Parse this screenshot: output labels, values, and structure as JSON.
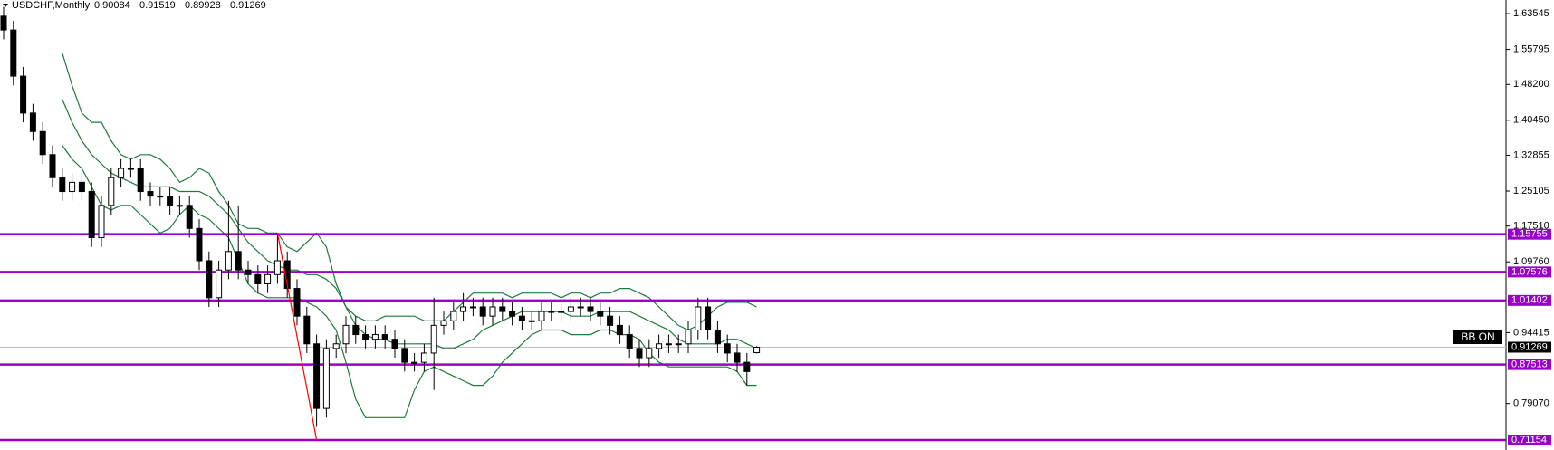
{
  "chart_data": {
    "type": "candlestick",
    "symbol": "USDCHF,Monthly",
    "ohlc": [
      0.90084,
      0.91519,
      0.89928,
      0.91269
    ],
    "indicator_label": "BB ON",
    "ylim": [
      0.69,
      1.665
    ],
    "yticks": [
      1.63545,
      1.55795,
      {
        "value": 1.482,
        "label": "1.48200"
      },
      {
        "value": 1.4045,
        "label": "1.40450"
      },
      1.32855,
      1.25105,
      {
        "value": 1.1751,
        "label": "1.17510"
      },
      {
        "value": 1.0976,
        "label": "1.09760"
      },
      0.94415,
      {
        "value": 0.7907,
        "label": "0.79070"
      }
    ],
    "open": [
      1.63,
      1.6,
      1.5,
      1.42,
      1.38,
      1.33,
      1.28,
      1.25,
      1.27,
      1.25,
      1.15,
      1.22,
      1.28,
      1.3,
      1.3,
      1.25,
      1.24,
      1.24,
      1.22,
      1.22,
      1.17,
      1.1,
      1.02,
      1.08,
      1.12,
      1.08,
      1.07,
      1.05,
      1.07,
      1.1,
      1.04,
      0.98,
      0.92,
      0.78,
      0.91,
      0.92,
      0.96,
      0.94,
      0.93,
      0.94,
      0.93,
      0.91,
      0.88,
      0.88,
      0.9,
      0.96,
      0.97,
      0.99,
      1.0,
      1.0,
      0.98,
      1.0,
      0.99,
      0.98,
      0.97,
      0.97,
      0.99,
      0.99,
      0.99,
      1.0,
      1.0,
      0.99,
      0.98,
      0.96,
      0.94,
      0.91,
      0.89,
      0.91,
      0.92,
      0.92,
      0.92,
      0.95,
      1.0,
      0.95,
      0.92,
      0.9,
      0.88,
      0.90084
    ],
    "high": [
      1.65,
      1.62,
      1.52,
      1.44,
      1.4,
      1.35,
      1.3,
      1.29,
      1.29,
      1.27,
      1.24,
      1.3,
      1.32,
      1.32,
      1.32,
      1.27,
      1.26,
      1.26,
      1.24,
      1.24,
      1.19,
      1.12,
      1.1,
      1.23,
      1.22,
      1.1,
      1.09,
      1.09,
      1.16,
      1.12,
      1.06,
      1.0,
      0.94,
      0.93,
      0.94,
      0.98,
      0.98,
      0.96,
      0.96,
      0.96,
      0.95,
      0.93,
      0.9,
      0.92,
      1.02,
      0.99,
      1.01,
      1.03,
      1.02,
      1.02,
      1.02,
      1.02,
      1.01,
      1.0,
      0.99,
      1.01,
      1.01,
      1.01,
      1.02,
      1.02,
      1.02,
      1.01,
      1.0,
      0.98,
      0.96,
      0.93,
      0.93,
      0.94,
      0.94,
      0.94,
      0.97,
      1.02,
      1.02,
      0.97,
      0.94,
      0.92,
      0.9,
      0.91519
    ],
    "low": [
      1.58,
      1.48,
      1.4,
      1.36,
      1.31,
      1.26,
      1.23,
      1.23,
      1.23,
      1.13,
      1.13,
      1.2,
      1.26,
      1.28,
      1.23,
      1.22,
      1.22,
      1.2,
      1.2,
      1.15,
      1.08,
      1.0,
      1.0,
      1.06,
      1.06,
      1.05,
      1.03,
      1.03,
      1.05,
      1.02,
      0.96,
      0.9,
      0.74,
      0.76,
      0.89,
      0.9,
      0.92,
      0.91,
      0.91,
      0.91,
      0.89,
      0.86,
      0.86,
      0.86,
      0.82,
      0.94,
      0.95,
      0.97,
      0.98,
      0.96,
      0.96,
      0.97,
      0.96,
      0.95,
      0.95,
      0.95,
      0.97,
      0.97,
      0.97,
      0.98,
      0.97,
      0.96,
      0.94,
      0.92,
      0.89,
      0.87,
      0.87,
      0.89,
      0.9,
      0.9,
      0.9,
      0.93,
      0.93,
      0.9,
      0.88,
      0.86,
      0.83,
      0.89928
    ],
    "close": [
      1.6,
      1.5,
      1.42,
      1.38,
      1.33,
      1.28,
      1.25,
      1.27,
      1.25,
      1.15,
      1.22,
      1.28,
      1.3,
      1.3,
      1.25,
      1.24,
      1.24,
      1.22,
      1.22,
      1.17,
      1.1,
      1.02,
      1.08,
      1.12,
      1.08,
      1.07,
      1.05,
      1.07,
      1.1,
      1.04,
      0.98,
      0.92,
      0.78,
      0.91,
      0.92,
      0.96,
      0.94,
      0.93,
      0.94,
      0.93,
      0.91,
      0.88,
      0.88,
      0.9,
      0.96,
      0.97,
      0.99,
      1.0,
      1.0,
      0.98,
      1.0,
      0.99,
      0.98,
      0.97,
      0.97,
      0.99,
      0.99,
      0.99,
      1.0,
      1.0,
      0.99,
      0.98,
      0.96,
      0.94,
      0.91,
      0.89,
      0.91,
      0.92,
      0.92,
      0.92,
      0.95,
      1.0,
      0.95,
      0.92,
      0.9,
      0.88,
      0.86,
      0.91269
    ],
    "bands": {
      "color": "#1e7a3c",
      "series": [
        {
          "values": [
            null,
            null,
            null,
            null,
            null,
            null,
            1.55,
            1.48,
            1.42,
            1.4,
            1.4,
            1.36,
            1.33,
            1.32,
            1.33,
            1.33,
            1.32,
            1.3,
            1.27,
            1.28,
            1.3,
            1.29,
            1.25,
            1.22,
            1.18,
            1.17,
            1.17,
            1.16,
            1.16,
            1.13,
            1.12,
            1.14,
            1.16,
            1.13,
            1.05,
            1.0,
            0.98,
            0.97,
            0.97,
            0.98,
            0.98,
            0.98,
            0.98,
            0.97,
            0.97,
            0.97,
            0.99,
            1.01,
            1.03,
            1.03,
            1.03,
            1.03,
            1.02,
            1.03,
            1.03,
            1.03,
            1.03,
            1.02,
            1.03,
            1.03,
            1.02,
            1.03,
            1.03,
            1.04,
            1.04,
            1.03,
            1.02,
            1.0,
            0.98,
            0.96,
            0.95,
            0.96,
            0.98,
            1.0,
            1.01,
            1.01,
            1.01,
            1.0
          ]
        },
        {
          "values": [
            null,
            null,
            null,
            null,
            null,
            null,
            1.45,
            1.4,
            1.36,
            1.33,
            1.31,
            1.29,
            1.28,
            1.27,
            1.26,
            1.26,
            1.26,
            1.26,
            1.25,
            1.25,
            1.25,
            1.24,
            1.22,
            1.2,
            1.17,
            1.14,
            1.12,
            1.1,
            1.09,
            1.08,
            1.08,
            1.07,
            1.07,
            1.06,
            1.04,
            1.0,
            0.96,
            0.94,
            0.93,
            0.93,
            0.92,
            0.92,
            0.92,
            0.92,
            0.92,
            0.91,
            0.91,
            0.92,
            0.93,
            0.95,
            0.96,
            0.97,
            0.98,
            0.99,
            0.99,
            0.99,
            0.99,
            0.99,
            0.98,
            0.98,
            0.98,
            0.99,
            0.99,
            0.99,
            0.99,
            0.98,
            0.97,
            0.96,
            0.95,
            0.93,
            0.92,
            0.92,
            0.92,
            0.92,
            0.93,
            0.93,
            0.92,
            0.91
          ]
        },
        {
          "values": [
            null,
            null,
            null,
            null,
            null,
            null,
            1.35,
            1.32,
            1.3,
            1.26,
            1.22,
            1.21,
            1.22,
            1.22,
            1.2,
            1.18,
            1.16,
            1.17,
            1.2,
            1.22,
            1.2,
            1.19,
            1.17,
            1.15,
            1.1,
            1.05,
            1.03,
            1.02,
            1.02,
            1.02,
            1.02,
            1.01,
            1.0,
            0.98,
            0.95,
            0.88,
            0.8,
            0.76,
            0.76,
            0.76,
            0.76,
            0.76,
            0.82,
            0.86,
            0.87,
            0.86,
            0.85,
            0.84,
            0.83,
            0.83,
            0.85,
            0.88,
            0.9,
            0.92,
            0.94,
            0.95,
            0.95,
            0.95,
            0.94,
            0.94,
            0.94,
            0.95,
            0.95,
            0.94,
            0.94,
            0.93,
            0.9,
            0.88,
            0.87,
            0.87,
            0.87,
            0.87,
            0.87,
            0.87,
            0.87,
            0.86,
            0.83,
            0.83
          ]
        }
      ]
    },
    "trendline": {
      "color": "#ff0000",
      "x": [
        28,
        32
      ],
      "values": [
        1.16,
        0.71154
      ]
    },
    "levels": {
      "color": "#9b00c8",
      "values": [
        1.15755,
        1.07576,
        1.01402,
        0.87513,
        0.71154
      ]
    },
    "current_price": 0.91269
  }
}
